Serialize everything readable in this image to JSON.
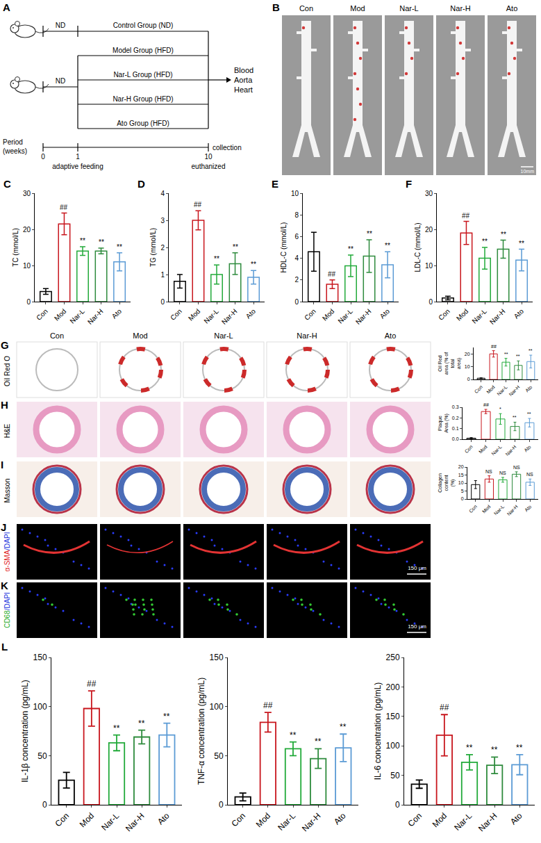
{
  "diagram": {
    "panel": "A",
    "pre_label": "ND",
    "control": "Control Group (ND)",
    "groups": [
      "Model Group (HFD)",
      "Nar-L Group (HFD)",
      "Nar-H Group (HFD)",
      "Ato Group (HFD)"
    ],
    "outputs": [
      "Blood",
      "Aorta",
      "Heart"
    ],
    "period_label": "Period",
    "period_unit": "(weeks)",
    "time_points": [
      0,
      1,
      10
    ],
    "time_notes": [
      "adaptive feeding",
      "euthanized"
    ],
    "end_note": "collection"
  },
  "aorta_photos": {
    "panel": "B",
    "labels": [
      "Con",
      "Mod",
      "Nar-L",
      "Nar-H",
      "Ato"
    ],
    "scale_bar": "10mm"
  },
  "histology": {
    "panels": [
      "G",
      "H",
      "I"
    ],
    "stains": [
      "Oil Red O",
      "H&E",
      "Masson"
    ],
    "groups": [
      "Con",
      "Mod",
      "Nar-L",
      "Nar-H",
      "Ato"
    ]
  },
  "immunofluorescence": {
    "panels": [
      "J",
      "K"
    ],
    "stains": [
      "α-SMA/DAPI",
      "CD68/DAPI"
    ],
    "scale_bar": "150 μm"
  },
  "chart_data": [
    {
      "panel": "C",
      "type": "bar",
      "categories": [
        "Con",
        "Mod",
        "Nar-L",
        "Nar-H",
        "Ato"
      ],
      "values": [
        2.8,
        21.5,
        14,
        14,
        11
      ],
      "error": [
        0.8,
        3,
        1.2,
        0.8,
        2.5
      ],
      "colors": [
        "#000000",
        "#c8161d",
        "#22aa3a",
        "#2e8b3d",
        "#5b9bd5"
      ],
      "y_label": "TC (mmol/L)",
      "ylim": [
        0,
        30
      ],
      "yticks": [
        0,
        10,
        20,
        30
      ],
      "annotations": [
        null,
        "##",
        "**",
        "**",
        "**"
      ]
    },
    {
      "panel": "D",
      "type": "bar",
      "categories": [
        "Con",
        "Mod",
        "Nar-L",
        "Nar-H",
        "Ato"
      ],
      "values": [
        0.75,
        3.0,
        1.0,
        1.4,
        0.9
      ],
      "error": [
        0.25,
        0.35,
        0.35,
        0.4,
        0.25
      ],
      "colors": [
        "#000000",
        "#c8161d",
        "#22aa3a",
        "#2e8b3d",
        "#5b9bd5"
      ],
      "y_label": "TG (mmol/L)",
      "ylim": [
        0,
        4
      ],
      "yticks": [
        0,
        1,
        2,
        3,
        4
      ],
      "annotations": [
        null,
        "##",
        "**",
        "**",
        "**"
      ]
    },
    {
      "panel": "E",
      "type": "bar",
      "categories": [
        "Con",
        "Mod",
        "Nar-L",
        "Nar-H",
        "Ato"
      ],
      "values": [
        4.6,
        1.6,
        3.3,
        4.2,
        3.4
      ],
      "error": [
        1.8,
        0.4,
        1.0,
        1.5,
        1.2
      ],
      "colors": [
        "#000000",
        "#c8161d",
        "#22aa3a",
        "#2e8b3d",
        "#5b9bd5"
      ],
      "y_label": "HDL-C (mmol/L)",
      "ylim": [
        0,
        10
      ],
      "yticks": [
        0,
        2,
        4,
        6,
        8,
        10
      ],
      "annotations": [
        null,
        "##",
        "**",
        "**",
        "**"
      ]
    },
    {
      "panel": "F",
      "type": "bar",
      "categories": [
        "Con",
        "Mod",
        "Nar-L",
        "Nar-H",
        "Ato"
      ],
      "values": [
        1.0,
        19,
        12,
        14.5,
        11.5
      ],
      "error": [
        0.5,
        3.2,
        3,
        2.5,
        3
      ],
      "colors": [
        "#000000",
        "#c8161d",
        "#22aa3a",
        "#2e8b3d",
        "#5b9bd5"
      ],
      "y_label": "LDL-C (mmol/L)",
      "ylim": [
        0,
        30
      ],
      "yticks": [
        0,
        10,
        20,
        30
      ],
      "annotations": [
        null,
        "##",
        "**",
        "**",
        "**"
      ]
    },
    {
      "type": "bar",
      "categories": [
        "Con",
        "Mod",
        "Nar-L",
        "Nar-H",
        "Ato"
      ],
      "values": [
        1,
        20,
        13.5,
        11,
        14
      ],
      "error": [
        0.3,
        2.5,
        3,
        3.5,
        5
      ],
      "colors": [
        "#000000",
        "#c8161d",
        "#22aa3a",
        "#2e8b3d",
        "#5b9bd5"
      ],
      "y_label": "Oil Red area (% of total area)",
      "ylim": [
        0,
        25
      ],
      "yticks": [
        0,
        10,
        20
      ],
      "annotations": [
        null,
        "##",
        "**",
        "**",
        "**"
      ]
    },
    {
      "type": "bar",
      "categories": [
        "Con",
        "Mod",
        "Nar-L",
        "Nar-H",
        "Ato"
      ],
      "values": [
        0.01,
        0.26,
        0.19,
        0.12,
        0.155
      ],
      "error": [
        0.005,
        0.02,
        0.05,
        0.04,
        0.04
      ],
      "colors": [
        "#000000",
        "#c8161d",
        "#22aa3a",
        "#2e8b3d",
        "#5b9bd5"
      ],
      "y_label": "Plaque Area (%)",
      "ylim": [
        0,
        0.3
      ],
      "yticks": [
        {
          "value": 0,
          "label": "0.0"
        },
        0.1,
        0.2,
        0.3
      ],
      "annotations": [
        null,
        "##",
        "*",
        "**",
        "**"
      ]
    },
    {
      "type": "bar",
      "categories": [
        "Con",
        "Mod",
        "Nar-L",
        "Nar-H",
        "Ato"
      ],
      "values": [
        9,
        12.5,
        12,
        15.5,
        10.5
      ],
      "error": [
        2.5,
        2,
        1.5,
        1.5,
        2
      ],
      "colors": [
        "#000000",
        "#c8161d",
        "#22aa3a",
        "#2e8b3d",
        "#5b9bd5"
      ],
      "y_label": "Collagen content (%)",
      "ylim": [
        0,
        20
      ],
      "yticks": [
        0,
        5,
        10,
        15,
        20
      ],
      "annotations": [
        null,
        "NS",
        "NS",
        "NS",
        "NS"
      ]
    },
    {
      "panel": "L",
      "type": "bar",
      "categories": [
        "Con",
        "Mod",
        "Nar-L",
        "Nar-H",
        "Ato"
      ],
      "values": [
        25,
        98,
        63,
        69,
        71
      ],
      "error": [
        8,
        18,
        8,
        7,
        12
      ],
      "colors": [
        "#000000",
        "#c8161d",
        "#22aa3a",
        "#2e8b3d",
        "#5b9bd5"
      ],
      "y_label": "IL-1β concentration (pg/mL)",
      "ylim": [
        0,
        150
      ],
      "yticks": [
        0,
        50,
        100,
        150
      ],
      "annotations": [
        null,
        "##",
        "**",
        "**",
        "**"
      ]
    },
    {
      "panel": "L",
      "type": "bar",
      "categories": [
        "Con",
        "Mod",
        "Nar-L",
        "Nar-H",
        "Ato"
      ],
      "values": [
        8,
        84,
        57,
        47,
        58
      ],
      "error": [
        4,
        10,
        7,
        10,
        14
      ],
      "colors": [
        "#000000",
        "#c8161d",
        "#22aa3a",
        "#2e8b3d",
        "#5b9bd5"
      ],
      "y_label": "TNF-α concentration (pg/mL)",
      "ylim": [
        0,
        150
      ],
      "yticks": [
        0,
        50,
        100,
        150
      ],
      "annotations": [
        null,
        "##",
        "**",
        "**",
        "**"
      ]
    },
    {
      "panel": "L",
      "type": "bar",
      "categories": [
        "Con",
        "Mod",
        "Nar-L",
        "Nar-H",
        "Ato"
      ],
      "values": [
        35,
        118,
        72,
        67,
        68
      ],
      "error": [
        7,
        35,
        13,
        14,
        17
      ],
      "colors": [
        "#000000",
        "#c8161d",
        "#22aa3a",
        "#2e8b3d",
        "#5b9bd5"
      ],
      "y_label": "IL-6 concentration (pg/mL)",
      "ylim": [
        0,
        250
      ],
      "yticks": [
        0,
        50,
        100,
        150,
        200,
        250
      ],
      "annotations": [
        null,
        "##",
        "**",
        "**",
        "**"
      ]
    }
  ]
}
